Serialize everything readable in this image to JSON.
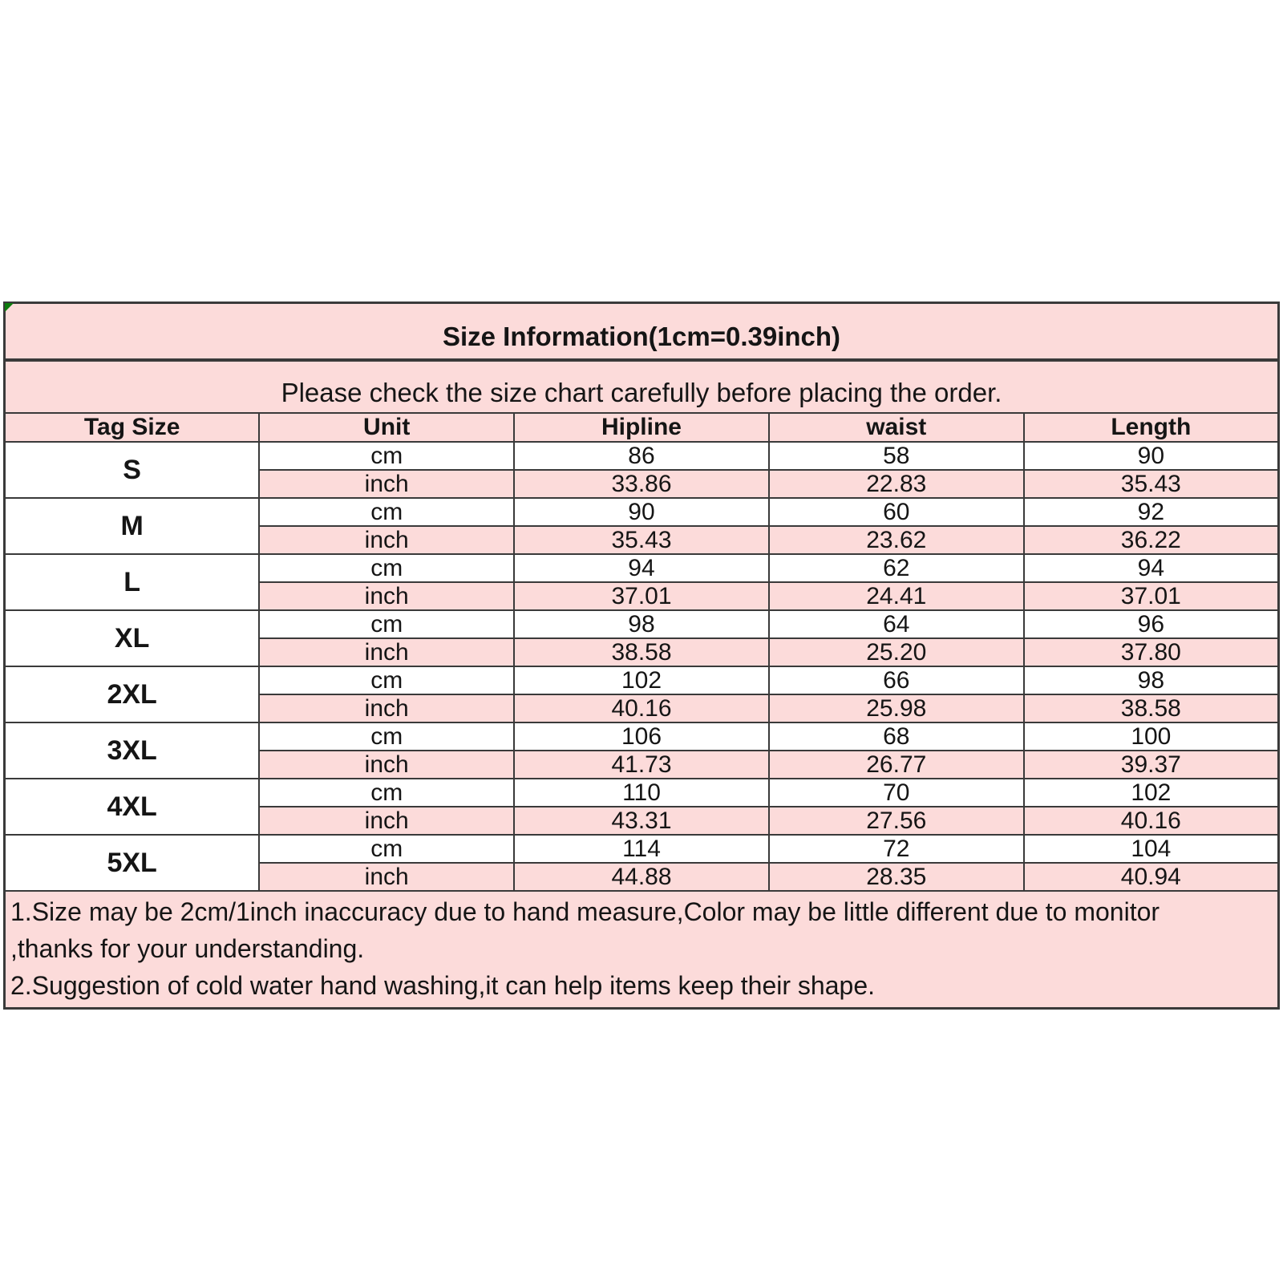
{
  "colors": {
    "pink": "#fcdbda",
    "border": "#3a3a3a",
    "corner_green": "#0c7a0c",
    "row_white": "#ffffff",
    "text": "#151515"
  },
  "chart_data": {
    "type": "table",
    "title": "Size Information(1cm=0.39inch)",
    "subtitle": "Please check the size chart carefully before placing the order.",
    "columns": [
      "Tag Size",
      "Unit",
      "Hipline",
      "waist",
      "Length"
    ],
    "unit_labels": [
      "cm",
      "inch"
    ],
    "sizes": [
      {
        "tag": "S",
        "cm": [
          "86",
          "58",
          "90"
        ],
        "inch": [
          "33.86",
          "22.83",
          "35.43"
        ]
      },
      {
        "tag": "M",
        "cm": [
          "90",
          "60",
          "92"
        ],
        "inch": [
          "35.43",
          "23.62",
          "36.22"
        ]
      },
      {
        "tag": "L",
        "cm": [
          "94",
          "62",
          "94"
        ],
        "inch": [
          "37.01",
          "24.41",
          "37.01"
        ]
      },
      {
        "tag": "XL",
        "cm": [
          "98",
          "64",
          "96"
        ],
        "inch": [
          "38.58",
          "25.20",
          "37.80"
        ]
      },
      {
        "tag": "2XL",
        "cm": [
          "102",
          "66",
          "98"
        ],
        "inch": [
          "40.16",
          "25.98",
          "38.58"
        ]
      },
      {
        "tag": "3XL",
        "cm": [
          "106",
          "68",
          "100"
        ],
        "inch": [
          "41.73",
          "26.77",
          "39.37"
        ]
      },
      {
        "tag": "4XL",
        "cm": [
          "110",
          "70",
          "102"
        ],
        "inch": [
          "43.31",
          "27.56",
          "40.16"
        ]
      },
      {
        "tag": "5XL",
        "cm": [
          "114",
          "72",
          "104"
        ],
        "inch": [
          "44.88",
          "28.35",
          "40.94"
        ]
      }
    ],
    "notes": [
      "1.Size may be 2cm/1inch inaccuracy due to hand measure,Color may be little different due to monitor",
      ",thanks for your understanding.",
      "2.Suggestion of cold water hand washing,it can help items keep their shape."
    ]
  }
}
